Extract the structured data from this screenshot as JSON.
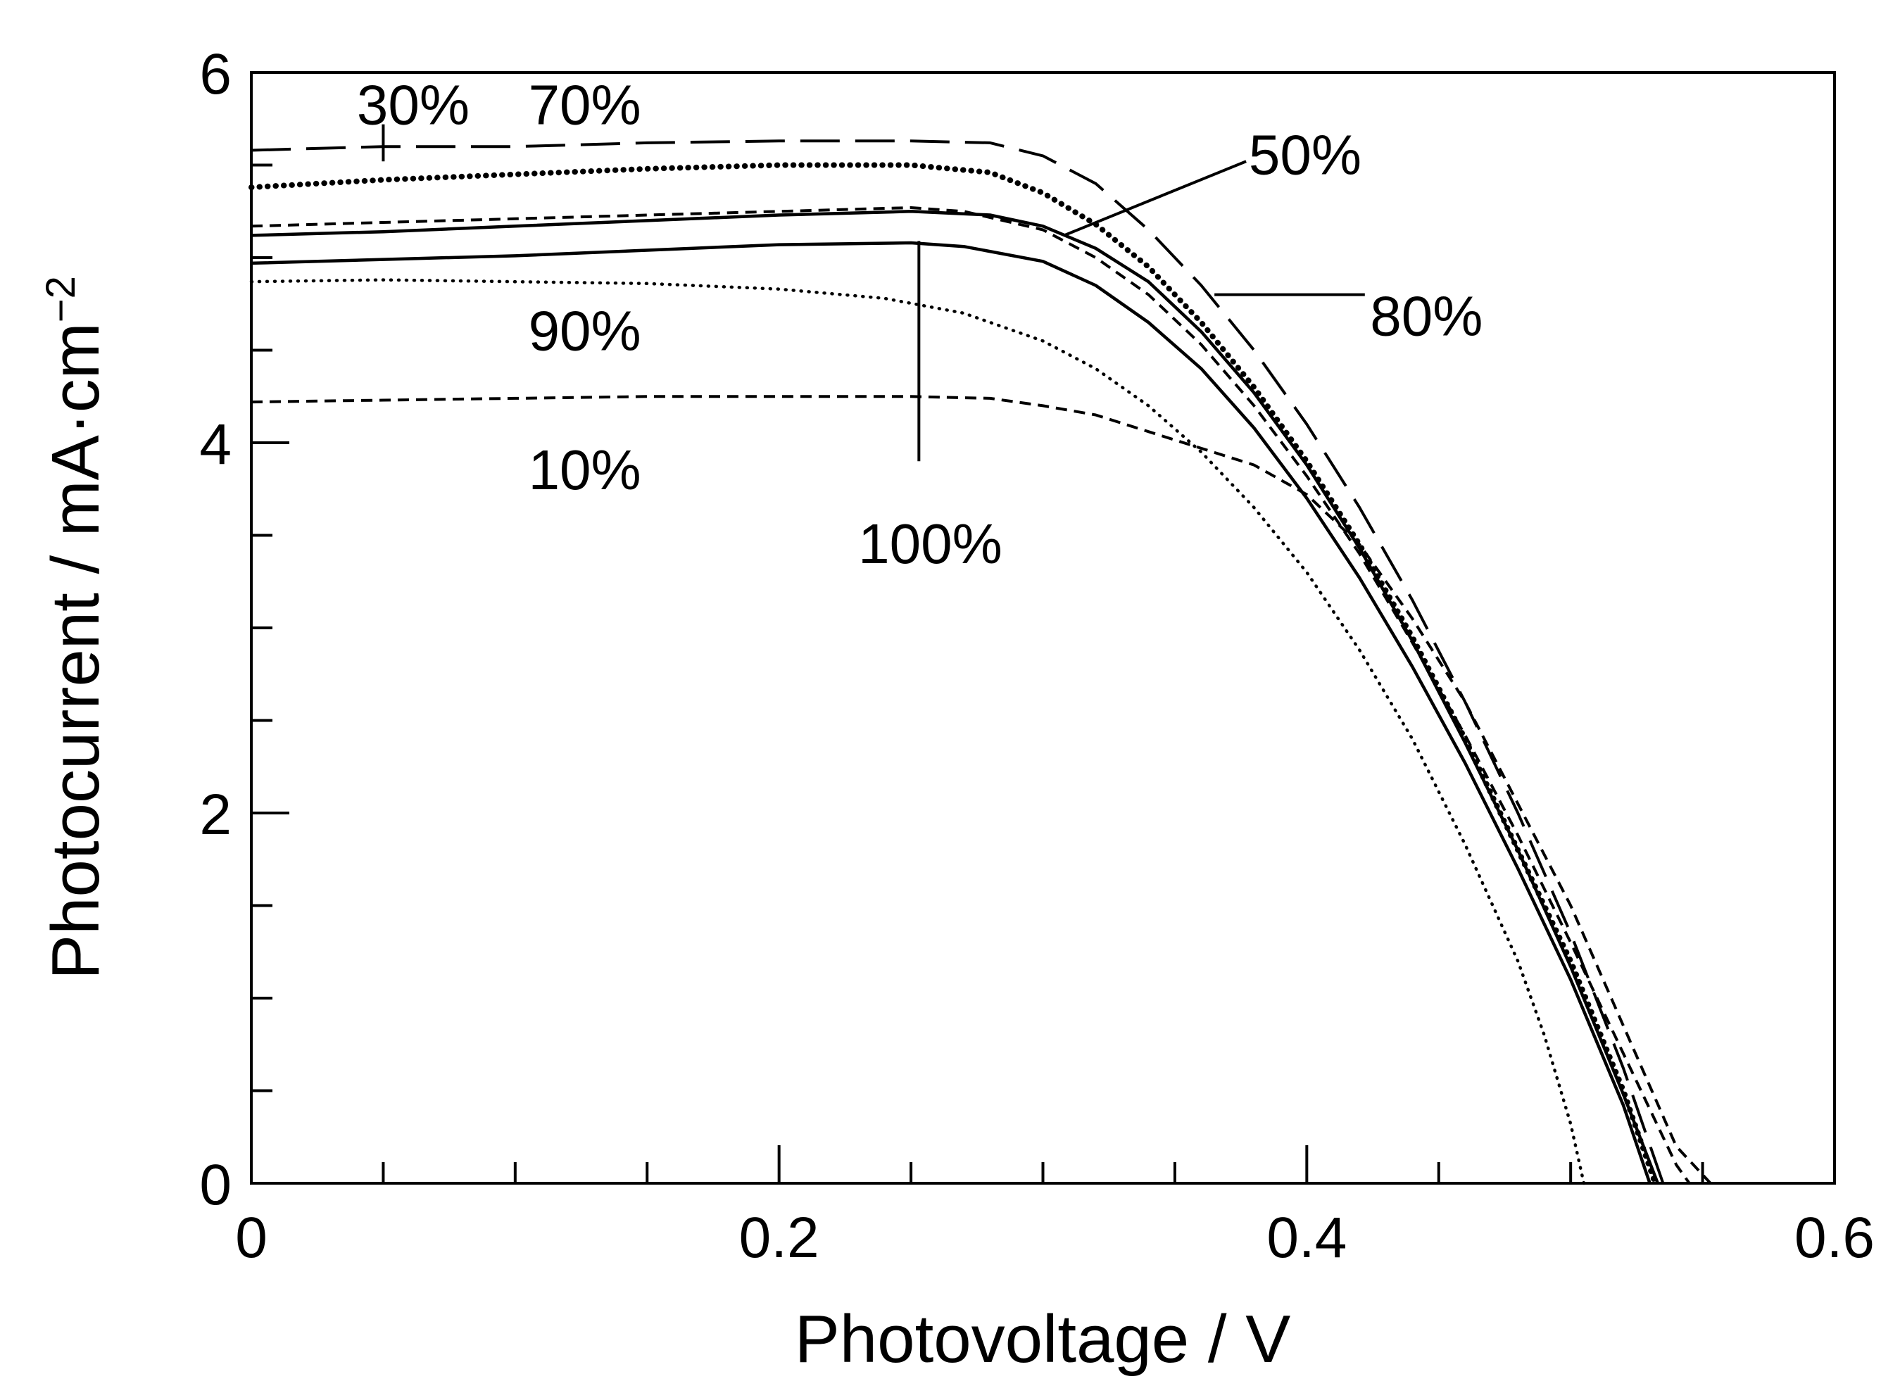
{
  "chart_data": {
    "type": "line",
    "title": "",
    "xlabel": "Photovoltage / V",
    "ylabel": "Photocurrent / mA·cm",
    "ylabel_unit_exponent": "−2",
    "xlim": [
      0,
      0.6
    ],
    "ylim": [
      0,
      6
    ],
    "x_major_ticks": [
      0,
      0.2,
      0.4,
      0.6
    ],
    "x_major_tick_labels": [
      "0",
      "0.2",
      "0.4",
      "0.6"
    ],
    "x_minor_ticks": [
      0.05,
      0.1,
      0.15,
      0.25,
      0.3,
      0.35,
      0.45,
      0.5,
      0.55
    ],
    "y_major_ticks": [
      0,
      2,
      4,
      6
    ],
    "y_major_tick_labels": [
      "0",
      "2",
      "4",
      "6"
    ],
    "y_minor_ticks": [
      0.5,
      1,
      1.5,
      2.5,
      3,
      3.5,
      4.5,
      5,
      5.5
    ],
    "grid": false,
    "series": [
      {
        "name": "30%",
        "style": "longdash",
        "points": [
          [
            0,
            5.58
          ],
          [
            0.05,
            5.6
          ],
          [
            0.1,
            5.6
          ],
          [
            0.15,
            5.62
          ],
          [
            0.2,
            5.63
          ],
          [
            0.25,
            5.63
          ],
          [
            0.28,
            5.62
          ],
          [
            0.3,
            5.55
          ],
          [
            0.32,
            5.4
          ],
          [
            0.34,
            5.15
          ],
          [
            0.36,
            4.85
          ],
          [
            0.38,
            4.5
          ],
          [
            0.4,
            4.1
          ],
          [
            0.42,
            3.65
          ],
          [
            0.44,
            3.15
          ],
          [
            0.46,
            2.6
          ],
          [
            0.48,
            2.0
          ],
          [
            0.5,
            1.35
          ],
          [
            0.52,
            0.62
          ],
          [
            0.535,
            0.0
          ]
        ]
      },
      {
        "name": "70%",
        "style": "dotted-heavy",
        "points": [
          [
            0,
            5.38
          ],
          [
            0.05,
            5.42
          ],
          [
            0.1,
            5.45
          ],
          [
            0.15,
            5.48
          ],
          [
            0.2,
            5.5
          ],
          [
            0.25,
            5.5
          ],
          [
            0.28,
            5.46
          ],
          [
            0.3,
            5.35
          ],
          [
            0.32,
            5.18
          ],
          [
            0.34,
            4.95
          ],
          [
            0.36,
            4.65
          ],
          [
            0.38,
            4.3
          ],
          [
            0.4,
            3.9
          ],
          [
            0.42,
            3.45
          ],
          [
            0.44,
            2.95
          ],
          [
            0.46,
            2.4
          ],
          [
            0.48,
            1.8
          ],
          [
            0.5,
            1.2
          ],
          [
            0.52,
            0.5
          ],
          [
            0.532,
            0.0
          ]
        ]
      },
      {
        "name": "50%",
        "style": "solid",
        "points": [
          [
            0,
            5.12
          ],
          [
            0.05,
            5.14
          ],
          [
            0.1,
            5.17
          ],
          [
            0.15,
            5.2
          ],
          [
            0.2,
            5.23
          ],
          [
            0.25,
            5.25
          ],
          [
            0.28,
            5.23
          ],
          [
            0.3,
            5.17
          ],
          [
            0.32,
            5.05
          ],
          [
            0.34,
            4.87
          ],
          [
            0.36,
            4.6
          ],
          [
            0.38,
            4.27
          ],
          [
            0.4,
            3.88
          ],
          [
            0.42,
            3.43
          ],
          [
            0.44,
            2.93
          ],
          [
            0.46,
            2.38
          ],
          [
            0.48,
            1.8
          ],
          [
            0.5,
            1.17
          ],
          [
            0.52,
            0.48
          ],
          [
            0.533,
            0.0
          ]
        ]
      },
      {
        "name": "80%",
        "style": "dashed",
        "points": [
          [
            0,
            5.17
          ],
          [
            0.05,
            5.19
          ],
          [
            0.1,
            5.21
          ],
          [
            0.15,
            5.23
          ],
          [
            0.2,
            5.25
          ],
          [
            0.25,
            5.27
          ],
          [
            0.27,
            5.25
          ],
          [
            0.3,
            5.15
          ],
          [
            0.32,
            5.0
          ],
          [
            0.34,
            4.8
          ],
          [
            0.36,
            4.53
          ],
          [
            0.38,
            4.2
          ],
          [
            0.4,
            3.82
          ],
          [
            0.42,
            3.4
          ],
          [
            0.44,
            2.92
          ],
          [
            0.46,
            2.42
          ],
          [
            0.48,
            1.88
          ],
          [
            0.5,
            1.3
          ],
          [
            0.52,
            0.7
          ],
          [
            0.54,
            0.1
          ],
          [
            0.545,
            0.0
          ]
        ]
      },
      {
        "name": "100%",
        "style": "solid",
        "points": [
          [
            0,
            4.97
          ],
          [
            0.05,
            4.99
          ],
          [
            0.1,
            5.01
          ],
          [
            0.15,
            5.04
          ],
          [
            0.2,
            5.07
          ],
          [
            0.25,
            5.08
          ],
          [
            0.27,
            5.06
          ],
          [
            0.3,
            4.98
          ],
          [
            0.32,
            4.85
          ],
          [
            0.34,
            4.65
          ],
          [
            0.36,
            4.4
          ],
          [
            0.38,
            4.08
          ],
          [
            0.4,
            3.7
          ],
          [
            0.42,
            3.27
          ],
          [
            0.44,
            2.79
          ],
          [
            0.46,
            2.27
          ],
          [
            0.48,
            1.7
          ],
          [
            0.5,
            1.1
          ],
          [
            0.52,
            0.42
          ],
          [
            0.53,
            0.0
          ]
        ]
      },
      {
        "name": "90%",
        "style": "dotted",
        "points": [
          [
            0,
            4.87
          ],
          [
            0.05,
            4.88
          ],
          [
            0.1,
            4.87
          ],
          [
            0.15,
            4.86
          ],
          [
            0.2,
            4.83
          ],
          [
            0.24,
            4.78
          ],
          [
            0.27,
            4.7
          ],
          [
            0.3,
            4.55
          ],
          [
            0.32,
            4.4
          ],
          [
            0.34,
            4.2
          ],
          [
            0.36,
            3.95
          ],
          [
            0.38,
            3.65
          ],
          [
            0.4,
            3.3
          ],
          [
            0.42,
            2.88
          ],
          [
            0.44,
            2.4
          ],
          [
            0.46,
            1.83
          ],
          [
            0.48,
            1.2
          ],
          [
            0.49,
            0.8
          ],
          [
            0.5,
            0.32
          ],
          [
            0.505,
            0.0
          ]
        ]
      },
      {
        "name": "10%",
        "style": "dashed",
        "points": [
          [
            0,
            4.22
          ],
          [
            0.05,
            4.23
          ],
          [
            0.1,
            4.24
          ],
          [
            0.15,
            4.25
          ],
          [
            0.2,
            4.25
          ],
          [
            0.25,
            4.25
          ],
          [
            0.28,
            4.24
          ],
          [
            0.3,
            4.2
          ],
          [
            0.32,
            4.15
          ],
          [
            0.34,
            4.06
          ],
          [
            0.36,
            3.97
          ],
          [
            0.38,
            3.88
          ],
          [
            0.4,
            3.72
          ],
          [
            0.42,
            3.45
          ],
          [
            0.44,
            3.05
          ],
          [
            0.46,
            2.6
          ],
          [
            0.48,
            2.05
          ],
          [
            0.5,
            1.5
          ],
          [
            0.52,
            0.85
          ],
          [
            0.54,
            0.2
          ],
          [
            0.553,
            0.0
          ]
        ]
      }
    ],
    "labels": [
      {
        "text": "30%",
        "x": 0.04,
        "y": 5.72
      },
      {
        "text": "70%",
        "x": 0.105,
        "y": 5.72
      },
      {
        "text": "50%",
        "x": 0.378,
        "y": 5.45
      },
      {
        "text": "80%",
        "x": 0.424,
        "y": 4.58
      },
      {
        "text": "90%",
        "x": 0.105,
        "y": 4.5
      },
      {
        "text": "10%",
        "x": 0.105,
        "y": 3.75
      },
      {
        "text": "100%",
        "x": 0.23,
        "y": 3.35
      }
    ],
    "leader_lines": [
      {
        "name": "30%",
        "points": [
          [
            0.05,
            5.52
          ],
          [
            0.05,
            5.72
          ]
        ]
      },
      {
        "name": "70%",
        "points": [
          [
            0.125,
            5.58
          ],
          [
            0.125,
            5.58
          ]
        ]
      },
      {
        "name": "50%",
        "points": [
          [
            0.308,
            5.12
          ],
          [
            0.377,
            5.52
          ]
        ]
      },
      {
        "name": "80%",
        "points": [
          [
            0.365,
            4.8
          ],
          [
            0.422,
            4.8
          ]
        ]
      },
      {
        "name": "100%",
        "points": [
          [
            0.253,
            5.09
          ],
          [
            0.253,
            3.9
          ]
        ]
      }
    ]
  }
}
